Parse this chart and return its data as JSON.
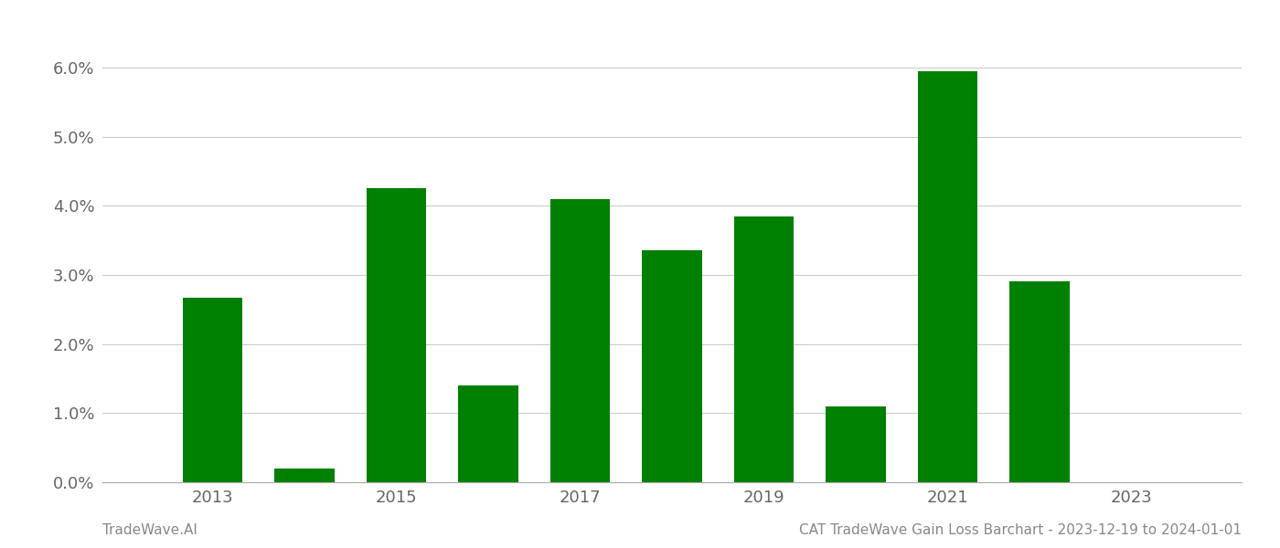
{
  "years": [
    2013,
    2014,
    2015,
    2016,
    2017,
    2018,
    2019,
    2020,
    2021,
    2022
  ],
  "values": [
    0.0267,
    0.002,
    0.0425,
    0.014,
    0.041,
    0.0335,
    0.0385,
    0.011,
    0.0595,
    0.029
  ],
  "bar_color": "#008000",
  "background_color": "#ffffff",
  "grid_color": "#cccccc",
  "ylim_min": 0.0,
  "ylim_max": 0.065,
  "yticks": [
    0.0,
    0.01,
    0.02,
    0.03,
    0.04,
    0.05,
    0.06
  ],
  "ytick_labels": [
    "0.0%",
    "1.0%",
    "2.0%",
    "3.0%",
    "4.0%",
    "5.0%",
    "6.0%"
  ],
  "xtick_years": [
    2013,
    2015,
    2017,
    2019,
    2021,
    2023
  ],
  "xlim_min": 2011.8,
  "xlim_max": 2024.2,
  "footer_left": "TradeWave.AI",
  "footer_right": "CAT TradeWave Gain Loss Barchart - 2023-12-19 to 2024-01-01",
  "footer_color": "#888888",
  "tick_fontsize": 13,
  "footer_fontsize": 11,
  "bar_width": 0.65
}
